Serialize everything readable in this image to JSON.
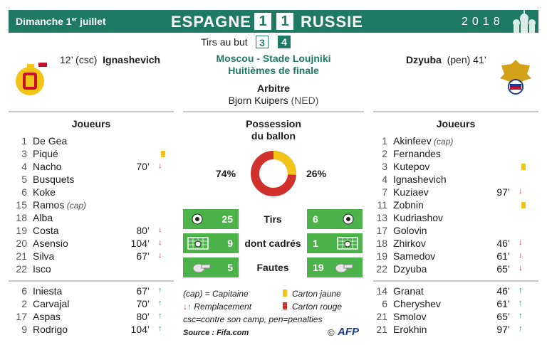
{
  "header": {
    "date": "Dimanche 1",
    "date_sup": "er",
    "date_suffix": " juillet",
    "home_team": "ESPAGNE",
    "home_score": "1",
    "away_score": "1",
    "away_team": "RUSSIE",
    "year": "2018",
    "shots_on_target_label": "Tirs au but",
    "home_shootout": "3",
    "away_shootout": "4"
  },
  "colors": {
    "green": "#1e7a63",
    "stat_green": "#4cb24a",
    "red": "#d0312d",
    "yellow": "#f2c417",
    "arrow_green": "#27a35a"
  },
  "goals": {
    "home_time": "12’ (csc)",
    "home_player": "Ignashevich",
    "away_player": "Dzyuba",
    "away_time": "(pen) 41’"
  },
  "match": {
    "venue": "Moscou - Stade Loujniki",
    "round": "Huitièmes de finale",
    "referee_label": "Arbitre",
    "referee_name": "Bjorn Kuipers",
    "referee_country": "(NED)"
  },
  "players_title": "Joueurs",
  "possession": {
    "title_line1": "Possession",
    "title_line2": "du ballon",
    "home": "74%",
    "away": "26%",
    "home_value": 74,
    "away_value": 26
  },
  "stats": [
    {
      "home": "25",
      "label": "Tirs",
      "away": "6",
      "icon": "ball-icon"
    },
    {
      "home": "9",
      "label": "dont cadrés",
      "away": "1",
      "icon": "goal-icon"
    },
    {
      "home": "5",
      "label": "Fautes",
      "away": "19",
      "icon": "whistle-icon"
    }
  ],
  "home_starters": [
    {
      "num": "1",
      "name": "De Gea"
    },
    {
      "num": "3",
      "name": "Piqué",
      "card": "yellow"
    },
    {
      "num": "4",
      "name": "Nacho",
      "time": "70’",
      "sub": "out"
    },
    {
      "num": "5",
      "name": "Busquets"
    },
    {
      "num": "6",
      "name": "Koke"
    },
    {
      "num": "15",
      "name": "Ramos",
      "note": "(cap)"
    },
    {
      "num": "18",
      "name": "Alba"
    },
    {
      "num": "19",
      "name": "Costa",
      "time": "80’",
      "sub": "out"
    },
    {
      "num": "20",
      "name": "Asensio",
      "time": "104’",
      "sub": "out"
    },
    {
      "num": "21",
      "name": "Silva",
      "time": "67’",
      "sub": "out"
    },
    {
      "num": "22",
      "name": "Isco"
    }
  ],
  "home_subs": [
    {
      "num": "6",
      "name": "Iniesta",
      "time": "67’",
      "sub": "in"
    },
    {
      "num": "2",
      "name": "Carvajal",
      "time": "70’",
      "sub": "in"
    },
    {
      "num": "17",
      "name": "Aspas",
      "time": "80’",
      "sub": "in"
    },
    {
      "num": "9",
      "name": "Rodrigo",
      "time": "104’",
      "sub": "in"
    }
  ],
  "away_starters": [
    {
      "num": "1",
      "name": "Akinfeev",
      "note": "(cap)"
    },
    {
      "num": "2",
      "name": "Fernandes"
    },
    {
      "num": "3",
      "name": "Kutepov",
      "card": "yellow"
    },
    {
      "num": "4",
      "name": "Ignashevich"
    },
    {
      "num": "7",
      "name": "Kuziaev",
      "time": "97’",
      "sub": "out"
    },
    {
      "num": "11",
      "name": "Zobnin",
      "card": "yellow"
    },
    {
      "num": "13",
      "name": "Kudriashov"
    },
    {
      "num": "17",
      "name": "Golovin"
    },
    {
      "num": "18",
      "name": "Zhirkov",
      "time": "46’",
      "sub": "out"
    },
    {
      "num": "19",
      "name": "Samedov",
      "time": "61’",
      "sub": "out"
    },
    {
      "num": "22",
      "name": "Dzyuba",
      "time": "65’",
      "sub": "out"
    }
  ],
  "away_subs": [
    {
      "num": "14",
      "name": "Granat",
      "time": "46’",
      "sub": "in"
    },
    {
      "num": "6",
      "name": "Cheryshev",
      "time": "61’",
      "sub": "in"
    },
    {
      "num": "21",
      "name": "Smolov",
      "time": "65’",
      "sub": "in"
    },
    {
      "num": "21",
      "name": "Erokhin",
      "time": "97’",
      "sub": "in"
    }
  ],
  "legend": {
    "captain": "(cap) = Capitaine",
    "replacement": "Remplacement",
    "yellow": "Carton jaune",
    "red": "Carton rouge",
    "abbrev": "csc=contre son camp, pen=penalties",
    "source": "Source : Fifa.com",
    "copyright": "©",
    "agency": "AFP"
  }
}
